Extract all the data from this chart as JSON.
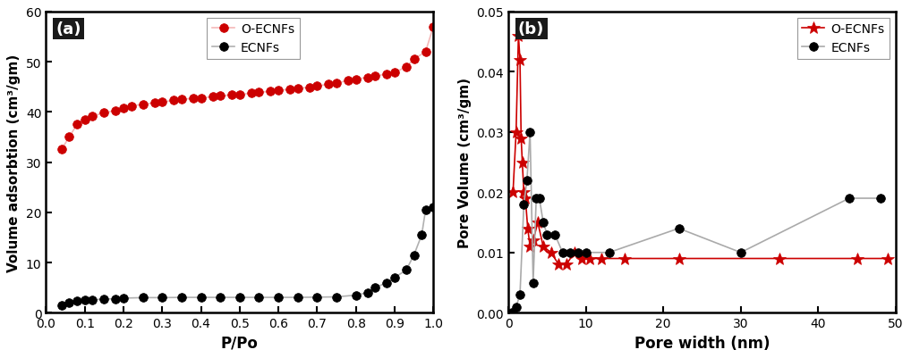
{
  "panel_a": {
    "title": "(a)",
    "xlabel": "P/Po",
    "ylabel": "Volume adsorbtion (cm³/gm)",
    "xlim": [
      0.0,
      1.0
    ],
    "ylim": [
      0,
      60
    ],
    "yticks": [
      0,
      10,
      20,
      30,
      40,
      50,
      60
    ],
    "xticks": [
      0.0,
      0.1,
      0.2,
      0.3,
      0.4,
      0.5,
      0.6,
      0.7,
      0.8,
      0.9,
      1.0
    ],
    "o_ecnfs_x": [
      0.04,
      0.06,
      0.08,
      0.1,
      0.12,
      0.15,
      0.18,
      0.2,
      0.22,
      0.25,
      0.28,
      0.3,
      0.33,
      0.35,
      0.38,
      0.4,
      0.43,
      0.45,
      0.48,
      0.5,
      0.53,
      0.55,
      0.58,
      0.6,
      0.63,
      0.65,
      0.68,
      0.7,
      0.73,
      0.75,
      0.78,
      0.8,
      0.83,
      0.85,
      0.88,
      0.9,
      0.93,
      0.95,
      0.98,
      1.0
    ],
    "o_ecnfs_y": [
      32.5,
      35.0,
      37.5,
      38.5,
      39.2,
      39.8,
      40.3,
      40.8,
      41.2,
      41.5,
      41.8,
      42.0,
      42.3,
      42.5,
      42.7,
      42.8,
      43.0,
      43.2,
      43.4,
      43.5,
      43.7,
      43.9,
      44.1,
      44.3,
      44.5,
      44.7,
      44.9,
      45.2,
      45.5,
      45.8,
      46.2,
      46.5,
      46.9,
      47.2,
      47.5,
      47.8,
      49.0,
      50.5,
      52.0,
      57.0
    ],
    "ecnfs_x": [
      0.04,
      0.06,
      0.08,
      0.1,
      0.12,
      0.15,
      0.18,
      0.2,
      0.25,
      0.3,
      0.35,
      0.4,
      0.45,
      0.5,
      0.55,
      0.6,
      0.65,
      0.7,
      0.75,
      0.8,
      0.83,
      0.85,
      0.88,
      0.9,
      0.93,
      0.95,
      0.97,
      0.98,
      1.0
    ],
    "ecnfs_y": [
      1.5,
      2.0,
      2.3,
      2.5,
      2.6,
      2.7,
      2.8,
      2.9,
      3.0,
      3.0,
      3.05,
      3.05,
      3.05,
      3.05,
      3.05,
      3.05,
      3.05,
      3.1,
      3.15,
      3.5,
      4.0,
      5.0,
      6.0,
      7.0,
      8.5,
      11.5,
      15.5,
      20.5,
      21.0
    ],
    "o_ecnfs_line_color": "#f5b8b8",
    "o_ecnfs_marker_color": "#cc0000",
    "ecnfs_line_color": "#b0b0b0",
    "ecnfs_marker_color": "#000000",
    "o_ecnfs_label": "O-ECNFs",
    "ecnfs_label": "ECNFs"
  },
  "panel_b": {
    "title": "(b)",
    "xlabel": "Pore width (nm)",
    "ylabel": "Pore Volume (cm³/gm)",
    "xlim": [
      0,
      50
    ],
    "ylim": [
      0.0,
      0.05
    ],
    "yticks": [
      0.0,
      0.01,
      0.02,
      0.03,
      0.04,
      0.05
    ],
    "xticks": [
      0,
      10,
      20,
      30,
      40,
      50
    ],
    "o_ecnfs_x": [
      0.6,
      1.0,
      1.3,
      1.5,
      1.65,
      1.8,
      2.0,
      2.2,
      2.5,
      2.8,
      3.2,
      3.8,
      4.5,
      5.5,
      6.5,
      7.5,
      8.5,
      9.5,
      10.5,
      12.0,
      15.0,
      22.0,
      35.0,
      45.0,
      49.0
    ],
    "o_ecnfs_y": [
      0.02,
      0.03,
      0.046,
      0.042,
      0.029,
      0.025,
      0.02,
      0.019,
      0.014,
      0.011,
      0.012,
      0.015,
      0.011,
      0.01,
      0.008,
      0.008,
      0.01,
      0.009,
      0.009,
      0.009,
      0.009,
      0.009,
      0.009,
      0.009,
      0.009
    ],
    "ecnfs_x": [
      0.5,
      1.0,
      1.5,
      2.0,
      2.4,
      2.8,
      3.2,
      3.6,
      4.0,
      4.5,
      5.0,
      6.0,
      7.0,
      8.0,
      9.0,
      10.0,
      13.0,
      22.0,
      30.0,
      44.0,
      48.0
    ],
    "ecnfs_y": [
      0.0,
      0.001,
      0.003,
      0.018,
      0.022,
      0.03,
      0.005,
      0.019,
      0.019,
      0.015,
      0.013,
      0.013,
      0.01,
      0.01,
      0.01,
      0.01,
      0.01,
      0.014,
      0.01,
      0.019,
      0.019
    ],
    "o_ecnfs_line_color": "#cc0000",
    "o_ecnfs_marker_color": "#cc0000",
    "ecnfs_line_color": "#aaaaaa",
    "ecnfs_marker_color": "#000000",
    "o_ecnfs_label": "O-ECNFs",
    "ecnfs_label": "ECNFs"
  },
  "bg_color": "#ffffff",
  "label_color": "#000000",
  "label_box_color": "#1a1a1a"
}
